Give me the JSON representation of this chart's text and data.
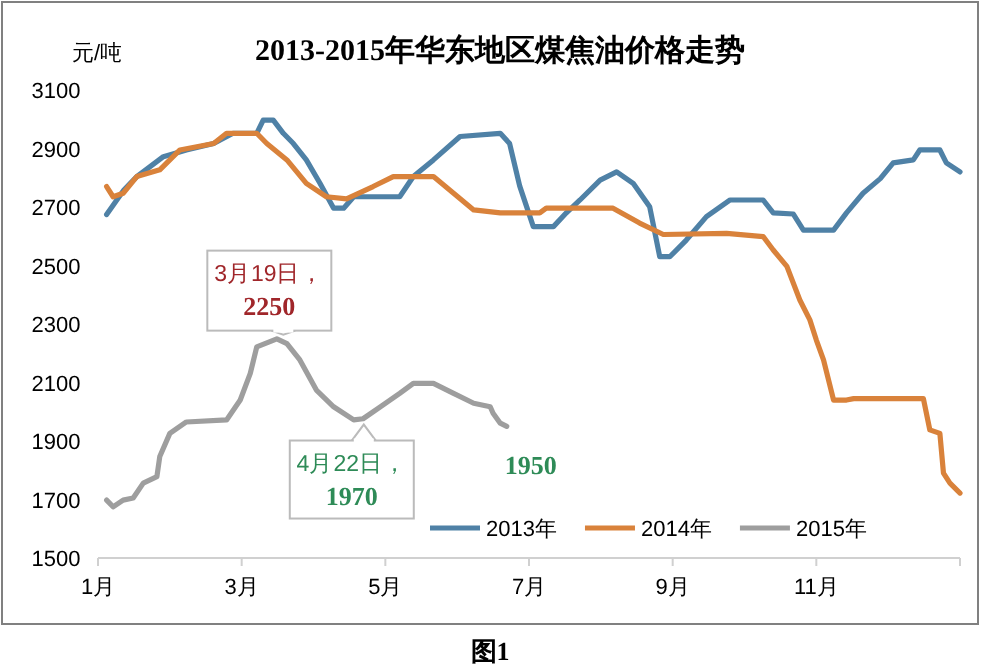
{
  "chart_data": {
    "type": "line",
    "title": "2013-2015年华东地区煤焦油价格走势",
    "ylabel": "元/吨",
    "xlim": [
      1,
      13
    ],
    "xticks": [
      {
        "value": 1,
        "label": "1月"
      },
      {
        "value": 3,
        "label": "3月"
      },
      {
        "value": 5,
        "label": "5月"
      },
      {
        "value": 7,
        "label": "7月"
      },
      {
        "value": 9,
        "label": "9月"
      },
      {
        "value": 11,
        "label": "11月"
      },
      {
        "value": 13,
        "label": null
      }
    ],
    "ylim": [
      1500,
      3100
    ],
    "yticks": [
      1500,
      1700,
      1900,
      2100,
      2300,
      2500,
      2700,
      2900,
      3100
    ],
    "legend": "bottom right",
    "series": [
      {
        "name": "2013年",
        "color": "#4f81a6",
        "x": [
          1.12,
          1.36,
          1.54,
          1.91,
          2.23,
          2.61,
          2.88,
          3.21,
          3.3,
          3.44,
          3.58,
          3.72,
          3.9,
          4.09,
          4.28,
          4.42,
          4.56,
          5.2,
          5.39,
          5.67,
          6.04,
          6.6,
          6.73,
          6.87,
          7.06,
          7.34,
          7.52,
          7.71,
          7.99,
          8.22,
          8.45,
          8.68,
          8.82,
          8.96,
          9.19,
          9.47,
          9.8,
          10.26,
          10.4,
          10.68,
          10.82,
          11.24,
          11.42,
          11.65,
          11.89,
          12.07,
          12.35,
          12.44,
          12.72,
          12.81,
          13.0
        ],
        "values": [
          2674,
          2758,
          2804,
          2872,
          2895,
          2917,
          2952,
          2952,
          2997,
          2997,
          2952,
          2917,
          2861,
          2781,
          2696,
          2696,
          2735,
          2735,
          2804,
          2861,
          2941,
          2952,
          2917,
          2772,
          2633,
          2633,
          2680,
          2724,
          2792,
          2820,
          2781,
          2701,
          2530,
          2530,
          2587,
          2667,
          2724,
          2724,
          2680,
          2676,
          2621,
          2621,
          2680,
          2747,
          2797,
          2851,
          2861,
          2895,
          2895,
          2851,
          2820
        ]
      },
      {
        "name": "2014年",
        "color": "#d9823b",
        "x": [
          1.12,
          1.21,
          1.35,
          1.54,
          1.86,
          2.14,
          2.61,
          2.79,
          3.21,
          3.35,
          3.63,
          3.9,
          4.18,
          4.46,
          4.83,
          5.11,
          5.67,
          5.95,
          6.23,
          6.6,
          7.15,
          7.24,
          8.17,
          8.54,
          8.87,
          9.75,
          10.26,
          10.4,
          10.59,
          10.77,
          10.91,
          11.0,
          11.1,
          11.24,
          11.42,
          11.52,
          12.49,
          12.58,
          12.72,
          12.77,
          12.86,
          13.0
        ],
        "values": [
          2770,
          2735,
          2747,
          2804,
          2827,
          2895,
          2917,
          2952,
          2952,
          2917,
          2861,
          2781,
          2735,
          2728,
          2770,
          2804,
          2804,
          2747,
          2690,
          2680,
          2680,
          2696,
          2696,
          2645,
          2606,
          2610,
          2599,
          2553,
          2497,
          2382,
          2314,
          2245,
          2177,
          2040,
          2040,
          2045,
          2045,
          1938,
          1926,
          1790,
          1756,
          1722
        ]
      },
      {
        "name": "2015年",
        "color": "#9e9e9e",
        "x": [
          1.12,
          1.21,
          1.35,
          1.49,
          1.63,
          1.82,
          1.86,
          2.0,
          2.23,
          2.79,
          2.98,
          3.12,
          3.21,
          3.49,
          3.63,
          3.81,
          4.04,
          4.28,
          4.56,
          4.69,
          4.93,
          5.2,
          5.39,
          5.67,
          5.95,
          6.23,
          6.46,
          6.5,
          6.6,
          6.69
        ],
        "values": [
          1698,
          1675,
          1698,
          1705,
          1756,
          1778,
          1847,
          1926,
          1965,
          1972,
          2040,
          2131,
          2222,
          2249,
          2233,
          2177,
          2074,
          2017,
          1972,
          1976,
          2017,
          2063,
          2097,
          2097,
          2063,
          2029,
          2017,
          1995,
          1961,
          1950
        ]
      }
    ],
    "annotations": [
      {
        "text": "3月19日，\n2250",
        "x": 3.58,
        "y": 2250
      },
      {
        "text": "4月22日，\n1970",
        "x": 4.7,
        "y": 1970
      },
      {
        "text": "1950",
        "x": 6.69,
        "y": 1950
      },
      "图1"
    ]
  }
}
